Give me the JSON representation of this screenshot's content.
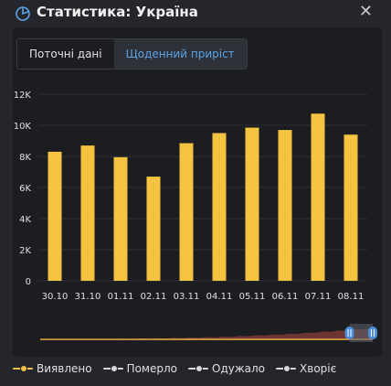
{
  "header": {
    "title": "Статистика: Україна",
    "close_symbol": "✕"
  },
  "tabs": [
    {
      "label": "Поточні дані",
      "active": false
    },
    {
      "label": "Щоденний приріст",
      "active": true
    }
  ],
  "legend": [
    {
      "label": "Виявлено",
      "color": "#f5c242"
    },
    {
      "label": "Померло",
      "color": "#d8d8d8"
    },
    {
      "label": "Одужало",
      "color": "#d8d8d8"
    },
    {
      "label": "Хворіє",
      "color": "#d8d8d8"
    }
  ],
  "colors": {
    "bar": "#f5c242",
    "accent": "#5aa4e8",
    "navigator_area": "#7a3a35",
    "navigator_line": "#f5c242",
    "handle": "#4a8fd8"
  },
  "chart_data": {
    "type": "bar",
    "categories": [
      "30.10",
      "31.10",
      "01.11",
      "02.11",
      "03.11",
      "04.11",
      "05.11",
      "06.11",
      "07.11",
      "08.11"
    ],
    "series": [
      {
        "name": "Виявлено",
        "values": [
          8300,
          8700,
          7950,
          6700,
          8850,
          9500,
          9850,
          9700,
          10750,
          9400
        ]
      }
    ],
    "yticks": [
      0,
      2000,
      4000,
      6000,
      8000,
      10000,
      12000
    ],
    "ytick_labels": [
      "0",
      "2K",
      "4K",
      "6K",
      "8K",
      "10K",
      "12K"
    ],
    "ylim": [
      0,
      12000
    ],
    "grid": true,
    "legend_position": "bottom",
    "navigator": {
      "selected_range_fraction": [
        0.93,
        1.0
      ]
    }
  }
}
